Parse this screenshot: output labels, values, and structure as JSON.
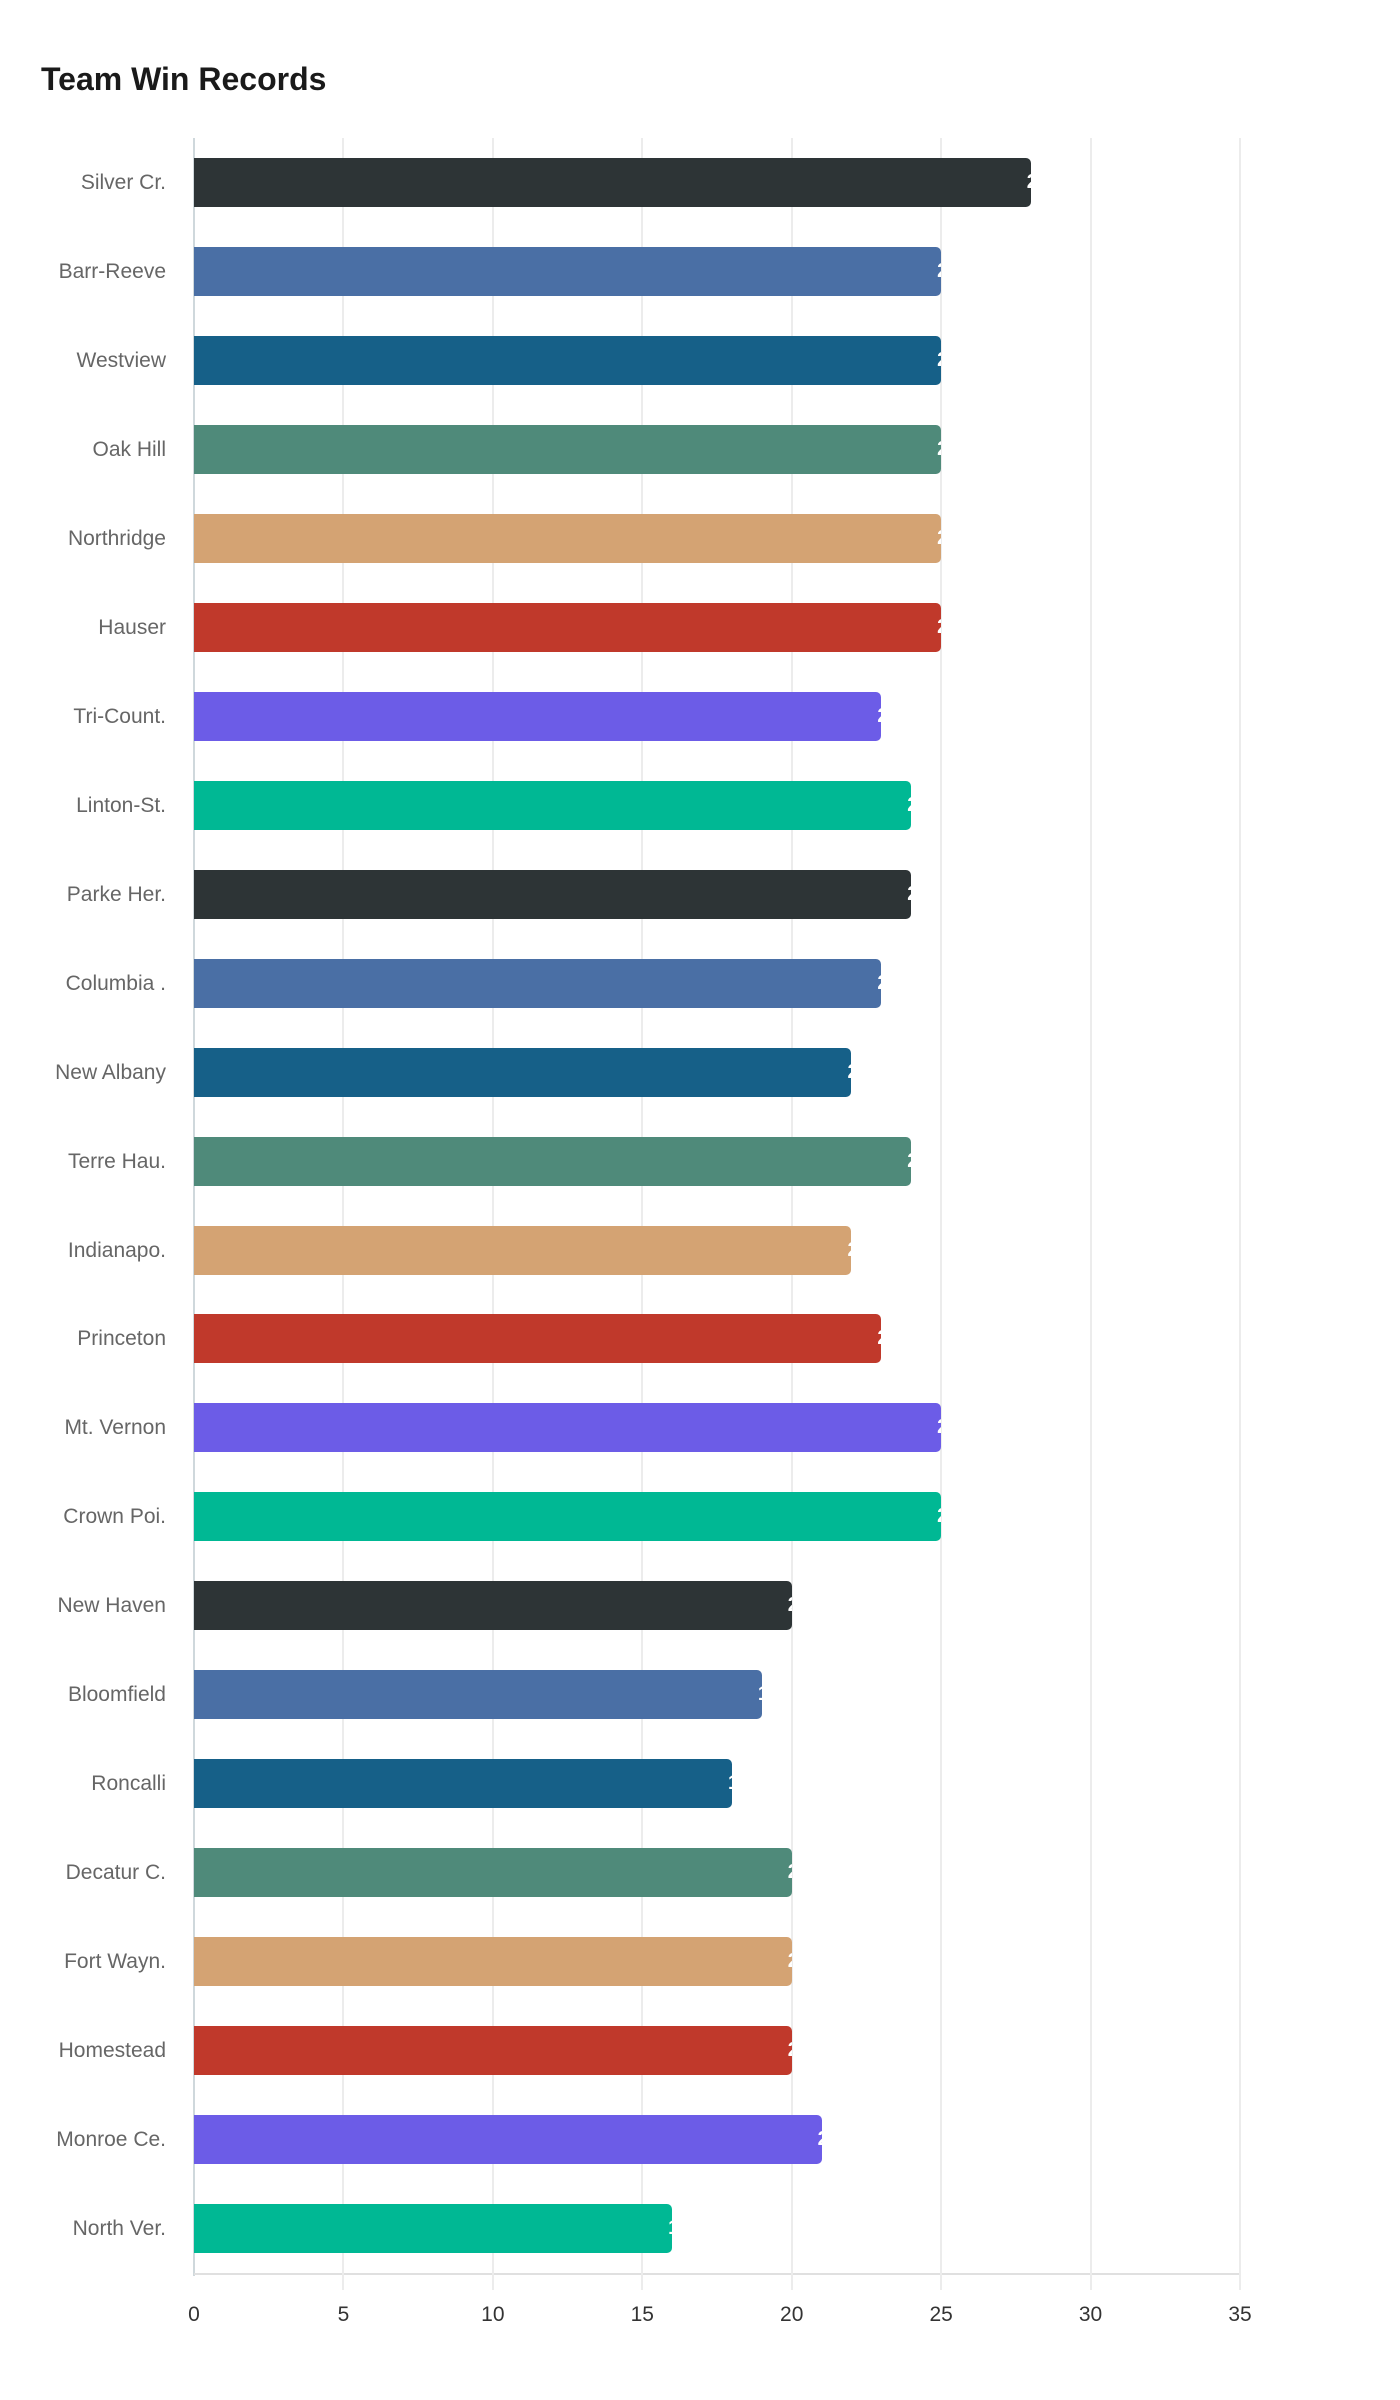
{
  "title": "Team Win Records",
  "chart_data": {
    "type": "bar",
    "orientation": "horizontal",
    "title": "Team Win Records",
    "xlabel": "",
    "ylabel": "",
    "xlim": [
      0,
      35
    ],
    "x_ticks": [
      0,
      5,
      10,
      15,
      20,
      25,
      30,
      35
    ],
    "grid": true,
    "legend": null,
    "categories": [
      "Silver Cr.",
      "Barr-Reeve",
      "Westview",
      "Oak Hill",
      "Northridge",
      "Hauser",
      "Tri-Count.",
      "Linton-St.",
      "Parke Her.",
      "Columbia .",
      "New Albany",
      "Terre Hau.",
      "Indianapo.",
      "Princeton",
      "Mt. Vernon",
      "Crown Poi.",
      "New Haven",
      "Bloomfield",
      "Roncalli",
      "Decatur C.",
      "Fort Wayn.",
      "Homestead",
      "Monroe Ce.",
      "North Ver."
    ],
    "values": [
      28,
      25,
      25,
      25,
      25,
      25,
      23,
      24,
      24,
      23,
      22,
      24,
      22,
      23,
      25,
      25,
      20,
      19,
      18,
      20,
      20,
      20,
      21,
      16
    ],
    "colors": [
      "#2d3436",
      "#4a6fa5",
      "#166088",
      "#4f8a7a",
      "#d4a373",
      "#c0392b",
      "#6c5ce7",
      "#00b894",
      "#2d3436",
      "#4a6fa5",
      "#166088",
      "#4f8a7a",
      "#d4a373",
      "#c0392b",
      "#6c5ce7",
      "#00b894",
      "#2d3436",
      "#4a6fa5",
      "#166088",
      "#4f8a7a",
      "#d4a373",
      "#c0392b",
      "#6c5ce7",
      "#00b894"
    ]
  }
}
